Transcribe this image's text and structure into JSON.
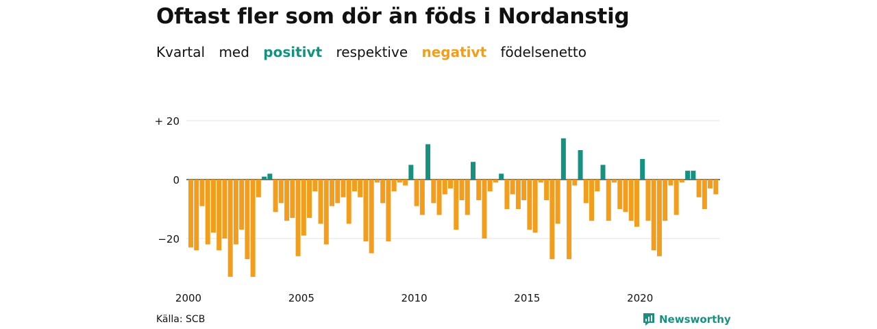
{
  "title": "Oftast fler som dör än föds i Nordanstig",
  "subtitle": {
    "part1": "Kvartal",
    "part2": "med",
    "positive_word": "positivt",
    "part3": "respektive",
    "negative_word": "negativt",
    "part4": "födelsenetto"
  },
  "colors": {
    "positive": "#17917f",
    "negative": "#f29d1b",
    "grid": "#e3e3e3"
  },
  "source": "Källa: SCB",
  "brand": {
    "name": "Newsworthy",
    "icon": "newsworthy-logo-icon"
  },
  "chart_data": {
    "type": "bar",
    "title": "Oftast fler som dör än föds i Nordanstig",
    "xlabel": "",
    "ylabel": "",
    "ylim": [
      -35,
      20
    ],
    "y_ticks": [
      20,
      0,
      -20
    ],
    "y_tick_labels": [
      "+ 20",
      "0",
      "−20"
    ],
    "x_ticks": [
      2000,
      2005,
      2010,
      2015,
      2020
    ],
    "x_tick_labels": [
      "2000",
      "2005",
      "2010",
      "2015",
      "2020"
    ],
    "first_year": 2000,
    "categories": [
      "2000Q1",
      "2000Q2",
      "2000Q3",
      "2000Q4",
      "2001Q1",
      "2001Q2",
      "2001Q3",
      "2001Q4",
      "2002Q1",
      "2002Q2",
      "2002Q3",
      "2002Q4",
      "2003Q1",
      "2003Q2",
      "2003Q3",
      "2003Q4",
      "2004Q1",
      "2004Q2",
      "2004Q3",
      "2004Q4",
      "2005Q1",
      "2005Q2",
      "2005Q3",
      "2005Q4",
      "2006Q1",
      "2006Q2",
      "2006Q3",
      "2006Q4",
      "2007Q1",
      "2007Q2",
      "2007Q3",
      "2007Q4",
      "2008Q1",
      "2008Q2",
      "2008Q3",
      "2008Q4",
      "2009Q1",
      "2009Q2",
      "2009Q3",
      "2009Q4",
      "2010Q1",
      "2010Q2",
      "2010Q3",
      "2010Q4",
      "2011Q1",
      "2011Q2",
      "2011Q3",
      "2011Q4",
      "2012Q1",
      "2012Q2",
      "2012Q3",
      "2012Q4",
      "2013Q1",
      "2013Q2",
      "2013Q3",
      "2013Q4",
      "2014Q1",
      "2014Q2",
      "2014Q3",
      "2014Q4",
      "2015Q1",
      "2015Q2",
      "2015Q3",
      "2015Q4",
      "2016Q1",
      "2016Q2",
      "2016Q3",
      "2016Q4",
      "2017Q1",
      "2017Q2",
      "2017Q3",
      "2017Q4",
      "2018Q1",
      "2018Q2",
      "2018Q3",
      "2018Q4",
      "2019Q1",
      "2019Q2",
      "2019Q3",
      "2019Q4",
      "2020Q1",
      "2020Q2",
      "2020Q3",
      "2020Q4",
      "2021Q1",
      "2021Q2",
      "2021Q3",
      "2021Q4",
      "2022Q1",
      "2022Q2",
      "2022Q3",
      "2022Q4",
      "2023Q1",
      "2023Q2",
      "2023Q3"
    ],
    "values": [
      -23,
      -24,
      -9,
      -22,
      -18,
      -24,
      -20,
      -33,
      -22,
      -17,
      -27,
      -33,
      -6,
      1,
      2,
      -11,
      -8,
      -14,
      -13,
      -26,
      -19,
      -13,
      -4,
      -15,
      -22,
      -9,
      -8,
      -6,
      -15,
      -4,
      -6,
      -21,
      -25,
      -1,
      -8,
      -21,
      -4,
      -1,
      -2,
      5,
      -9,
      -12,
      12,
      -8,
      -12,
      -5,
      -3,
      -17,
      -7,
      -12,
      6,
      -7,
      -20,
      -4,
      -1,
      2,
      -10,
      -5,
      -10,
      -7,
      -17,
      -18,
      -1,
      -7,
      -27,
      -15,
      14,
      -27,
      -2,
      10,
      -8,
      -14,
      -4,
      5,
      -14,
      -1,
      -10,
      -11,
      -14,
      -16,
      7,
      -14,
      -24,
      -26,
      -14,
      -2,
      -12,
      -1,
      3,
      3,
      -6,
      -10,
      -3,
      -5,
      0
    ]
  }
}
